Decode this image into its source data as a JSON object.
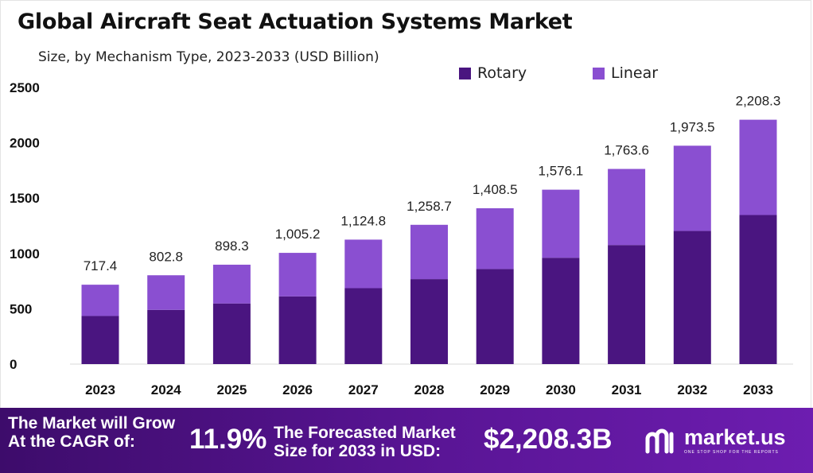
{
  "chart_data": {
    "type": "bar",
    "stacked": true,
    "title": "Global Aircraft Seat Actuation Systems Market",
    "subtitle": "Size, by Mechanism Type, 2023-2033 (USD Billion)",
    "categories": [
      "2023",
      "2024",
      "2025",
      "2026",
      "2027",
      "2028",
      "2029",
      "2030",
      "2031",
      "2032",
      "2033"
    ],
    "series": [
      {
        "name": "Rotary",
        "color": "#4a1580",
        "values": [
          435,
          490,
          548,
          612,
          686,
          768,
          859,
          961,
          1076,
          1203,
          1347
        ]
      },
      {
        "name": "Linear",
        "color": "#8a4fd1",
        "values": [
          282.4,
          312.8,
          350.3,
          393.2,
          438.8,
          490.7,
          549.5,
          615.1,
          687.6,
          770.5,
          861.3
        ]
      }
    ],
    "totals": [
      717.4,
      802.8,
      898.3,
      1005.2,
      1124.8,
      1258.7,
      1408.5,
      1576.1,
      1763.6,
      1973.5,
      2208.3
    ],
    "total_labels": [
      "717.4",
      "802.8",
      "898.3",
      "1,005.2",
      "1,124.8",
      "1,258.7",
      "1,408.5",
      "1,576.1",
      "1,763.6",
      "1,973.5",
      "2,208.3"
    ],
    "yticks": [
      "0",
      "500",
      "1000",
      "1500",
      "2000",
      "2500"
    ],
    "ylim": [
      0,
      2500
    ],
    "legend_position": "top-right",
    "grid": false
  },
  "legend": {
    "rotary": "Rotary",
    "linear": "Linear"
  },
  "footer": {
    "grow_line1": "The Market will Grow",
    "grow_line2": "At the CAGR of:",
    "cagr": "11.9%",
    "forecast_line1": "The Forecasted Market",
    "forecast_line2": "Size for 2033 in USD:",
    "forecast_value": "$2,208.3B",
    "brand": "market.us",
    "tagline": "ONE STOP SHOP FOR THE REPORTS"
  }
}
